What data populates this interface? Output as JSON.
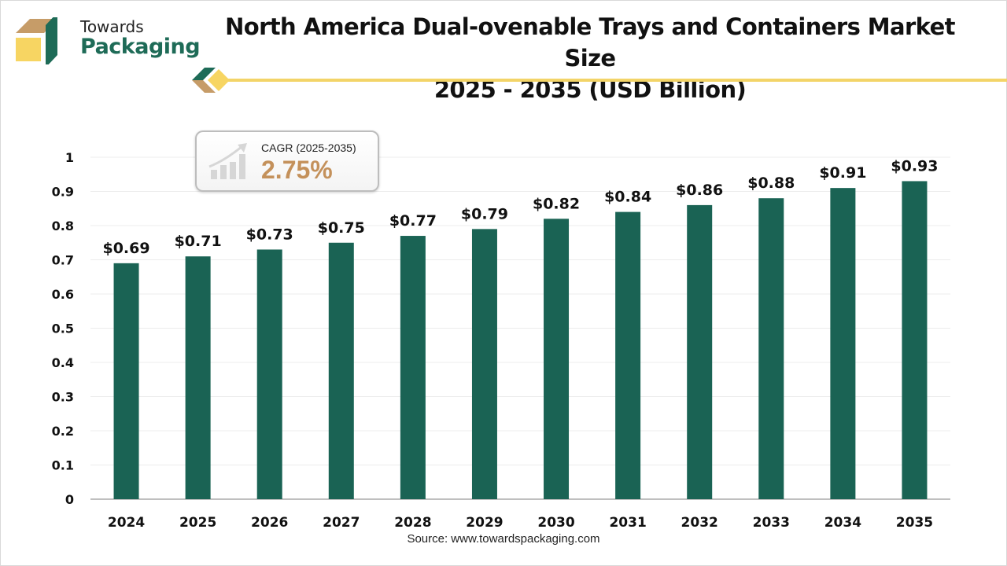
{
  "brand": {
    "line1": "Towards",
    "line2": "Packaging"
  },
  "header": {
    "title_line1": "North America Dual-ovenable Trays and Containers Market Size",
    "title_line2": "2025 - 2035 (USD Billion)"
  },
  "cagr": {
    "label": "CAGR (2025-2035)",
    "value": "2.75%",
    "icon": "growth-chart-icon"
  },
  "source": "Source: www.towardspackaging.com",
  "colors": {
    "bar": "#1a6354",
    "accent_gold": "#f3d468",
    "cagr_value": "#c4915b",
    "brand_green": "#1e6b57"
  },
  "chart_data": {
    "type": "bar",
    "title": "North America Dual-ovenable Trays and Containers Market Size 2025 - 2035 (USD Billion)",
    "xlabel": "",
    "ylabel": "",
    "categories": [
      "2024",
      "2025",
      "2026",
      "2027",
      "2028",
      "2029",
      "2030",
      "2031",
      "2032",
      "2033",
      "2034",
      "2035"
    ],
    "values": [
      0.69,
      0.71,
      0.73,
      0.75,
      0.77,
      0.79,
      0.82,
      0.84,
      0.86,
      0.88,
      0.91,
      0.93
    ],
    "data_labels": [
      "$0.69",
      "$0.71",
      "$0.73",
      "$0.75",
      "$0.77",
      "$0.79",
      "$0.82",
      "$0.84",
      "$0.86",
      "$0.88",
      "$0.91",
      "$0.93"
    ],
    "ylim": [
      0,
      1
    ],
    "yticks": [
      "0",
      "0.1",
      "0.2",
      "0.3",
      "0.4",
      "0.5",
      "0.6",
      "0.7",
      "0.8",
      "0.9",
      "1"
    ],
    "grid": true,
    "legend": "none"
  }
}
